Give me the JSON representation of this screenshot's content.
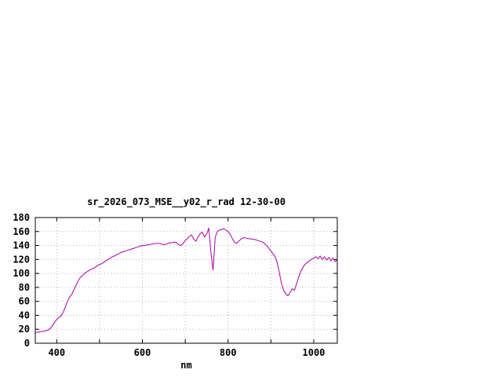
{
  "colors": {
    "line": "#aa00aa",
    "grid": "#b4b4b4",
    "axis": "#000000",
    "background": "#ffffff",
    "text": "#000000"
  },
  "chart_data": {
    "type": "line",
    "title": "sr_2026_073_MSE__y02_r_rad 12-30-00",
    "xlabel": "nm",
    "ylabel": "",
    "xlim": [
      350,
      1055
    ],
    "ylim": [
      0,
      180
    ],
    "xtick_labels": [
      400,
      600,
      800,
      1000
    ],
    "x_gridlines": [
      400,
      500,
      600,
      700,
      800,
      900,
      1000
    ],
    "yticks": [
      0,
      20,
      40,
      60,
      80,
      100,
      120,
      140,
      160,
      180
    ],
    "grid": "dotted",
    "legend": "none",
    "series": [
      {
        "name": "sr_2026_073_MSE__y02_r_rad",
        "x": [
          350,
          355,
          360,
          365,
          370,
          375,
          380,
          385,
          390,
          395,
          400,
          405,
          410,
          415,
          420,
          425,
          430,
          435,
          440,
          445,
          450,
          455,
          460,
          465,
          470,
          475,
          480,
          485,
          490,
          495,
          500,
          505,
          510,
          515,
          520,
          525,
          530,
          535,
          540,
          545,
          550,
          555,
          560,
          565,
          570,
          575,
          580,
          585,
          590,
          595,
          600,
          605,
          610,
          615,
          620,
          625,
          630,
          635,
          640,
          645,
          650,
          655,
          660,
          665,
          670,
          675,
          680,
          685,
          690,
          695,
          700,
          705,
          710,
          715,
          720,
          725,
          730,
          735,
          740,
          745,
          750,
          755,
          760,
          765,
          770,
          775,
          780,
          785,
          790,
          795,
          800,
          805,
          810,
          815,
          820,
          825,
          830,
          835,
          840,
          845,
          850,
          855,
          860,
          865,
          870,
          875,
          880,
          885,
          890,
          895,
          900,
          905,
          910,
          915,
          920,
          925,
          930,
          935,
          940,
          945,
          950,
          955,
          960,
          965,
          970,
          975,
          980,
          985,
          990,
          995,
          1000,
          1005,
          1010,
          1015,
          1020,
          1025,
          1030,
          1035,
          1040,
          1045,
          1050,
          1055
        ],
        "y": [
          15,
          16,
          16,
          17,
          17,
          18,
          19,
          21,
          25,
          30,
          34,
          37,
          39,
          44,
          52,
          60,
          66,
          70,
          76,
          83,
          89,
          94,
          97,
          100,
          102,
          104,
          106,
          107,
          109,
          111,
          113,
          114,
          116,
          118,
          120,
          122,
          124,
          125,
          127,
          128,
          130,
          131,
          132,
          133,
          134,
          135,
          136,
          137,
          138,
          139,
          140,
          140,
          141,
          141,
          142,
          142,
          143,
          143,
          143,
          142,
          141,
          142,
          143,
          144,
          144,
          145,
          144,
          141,
          140,
          143,
          147,
          150,
          153,
          155,
          149,
          146,
          152,
          157,
          159,
          152,
          156,
          165,
          130,
          105,
          152,
          160,
          162,
          163,
          164,
          162,
          160,
          156,
          150,
          145,
          143,
          146,
          149,
          151,
          151,
          150,
          150,
          149,
          149,
          148,
          147,
          146,
          145,
          143,
          140,
          136,
          132,
          128,
          124,
          115,
          100,
          85,
          75,
          71,
          68,
          73,
          78,
          76,
          85,
          95,
          103,
          109,
          113,
          116,
          118,
          120,
          122,
          124,
          121,
          125,
          120,
          124,
          119,
          123,
          118,
          122,
          117,
          120
        ]
      }
    ]
  }
}
